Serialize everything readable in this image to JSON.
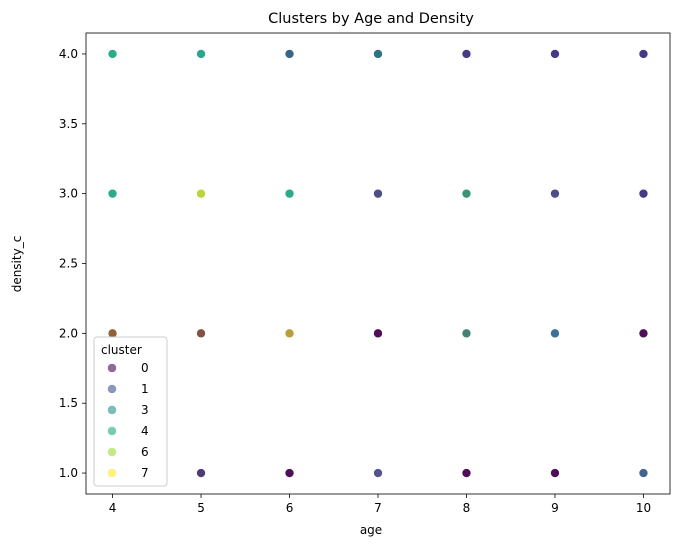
{
  "chart_data": {
    "type": "scatter",
    "title": "Clusters by Age and Density",
    "xlabel": "age",
    "ylabel": "density_c",
    "xlim": [
      3.7,
      10.3
    ],
    "ylim": [
      0.85,
      4.15
    ],
    "xticks": [
      4,
      5,
      6,
      7,
      8,
      9,
      10
    ],
    "yticks": [
      1.0,
      1.5,
      2.0,
      2.5,
      3.0,
      3.5,
      4.0
    ],
    "ytick_labels": [
      "1.0",
      "1.5",
      "2.0",
      "2.5",
      "3.0",
      "3.5",
      "4.0"
    ],
    "grid": false,
    "legend": {
      "title": "cluster",
      "placement": "lower-left",
      "entries": [
        "0",
        "1",
        "3",
        "4",
        "6",
        "7"
      ],
      "colors": [
        "#440154",
        "#3b528b",
        "#21918c",
        "#22a884",
        "#a0da39",
        "#fde725"
      ]
    },
    "points": [
      {
        "x": 4,
        "y": 4,
        "color": "#21a685"
      },
      {
        "x": 5,
        "y": 4,
        "color": "#1fa187"
      },
      {
        "x": 6,
        "y": 4,
        "color": "#2f5e80"
      },
      {
        "x": 7,
        "y": 4,
        "color": "#226b7c"
      },
      {
        "x": 8,
        "y": 4,
        "color": "#3b2f80"
      },
      {
        "x": 9,
        "y": 4,
        "color": "#3b2f80"
      },
      {
        "x": 10,
        "y": 4,
        "color": "#3b2f80"
      },
      {
        "x": 4,
        "y": 3,
        "color": "#21a685"
      },
      {
        "x": 5,
        "y": 3,
        "color": "#b5d330"
      },
      {
        "x": 6,
        "y": 3,
        "color": "#21a685"
      },
      {
        "x": 7,
        "y": 3,
        "color": "#46427f"
      },
      {
        "x": 8,
        "y": 3,
        "color": "#2e8f6f"
      },
      {
        "x": 9,
        "y": 3,
        "color": "#46427f"
      },
      {
        "x": 10,
        "y": 3,
        "color": "#3b2f80"
      },
      {
        "x": 4,
        "y": 2,
        "color": "#8b5a2b"
      },
      {
        "x": 5,
        "y": 2,
        "color": "#7a4a3a"
      },
      {
        "x": 6,
        "y": 2,
        "color": "#b59a2e"
      },
      {
        "x": 7,
        "y": 2,
        "color": "#44014f"
      },
      {
        "x": 8,
        "y": 2,
        "color": "#3a7a70"
      },
      {
        "x": 9,
        "y": 2,
        "color": "#31688e"
      },
      {
        "x": 10,
        "y": 2,
        "color": "#44014f"
      },
      {
        "x": 5,
        "y": 1,
        "color": "#46306f"
      },
      {
        "x": 6,
        "y": 1,
        "color": "#44014f"
      },
      {
        "x": 7,
        "y": 1,
        "color": "#4a4a8a"
      },
      {
        "x": 8,
        "y": 1,
        "color": "#44014f"
      },
      {
        "x": 9,
        "y": 1,
        "color": "#44014f"
      },
      {
        "x": 10,
        "y": 1,
        "color": "#3b5a8b"
      }
    ]
  }
}
